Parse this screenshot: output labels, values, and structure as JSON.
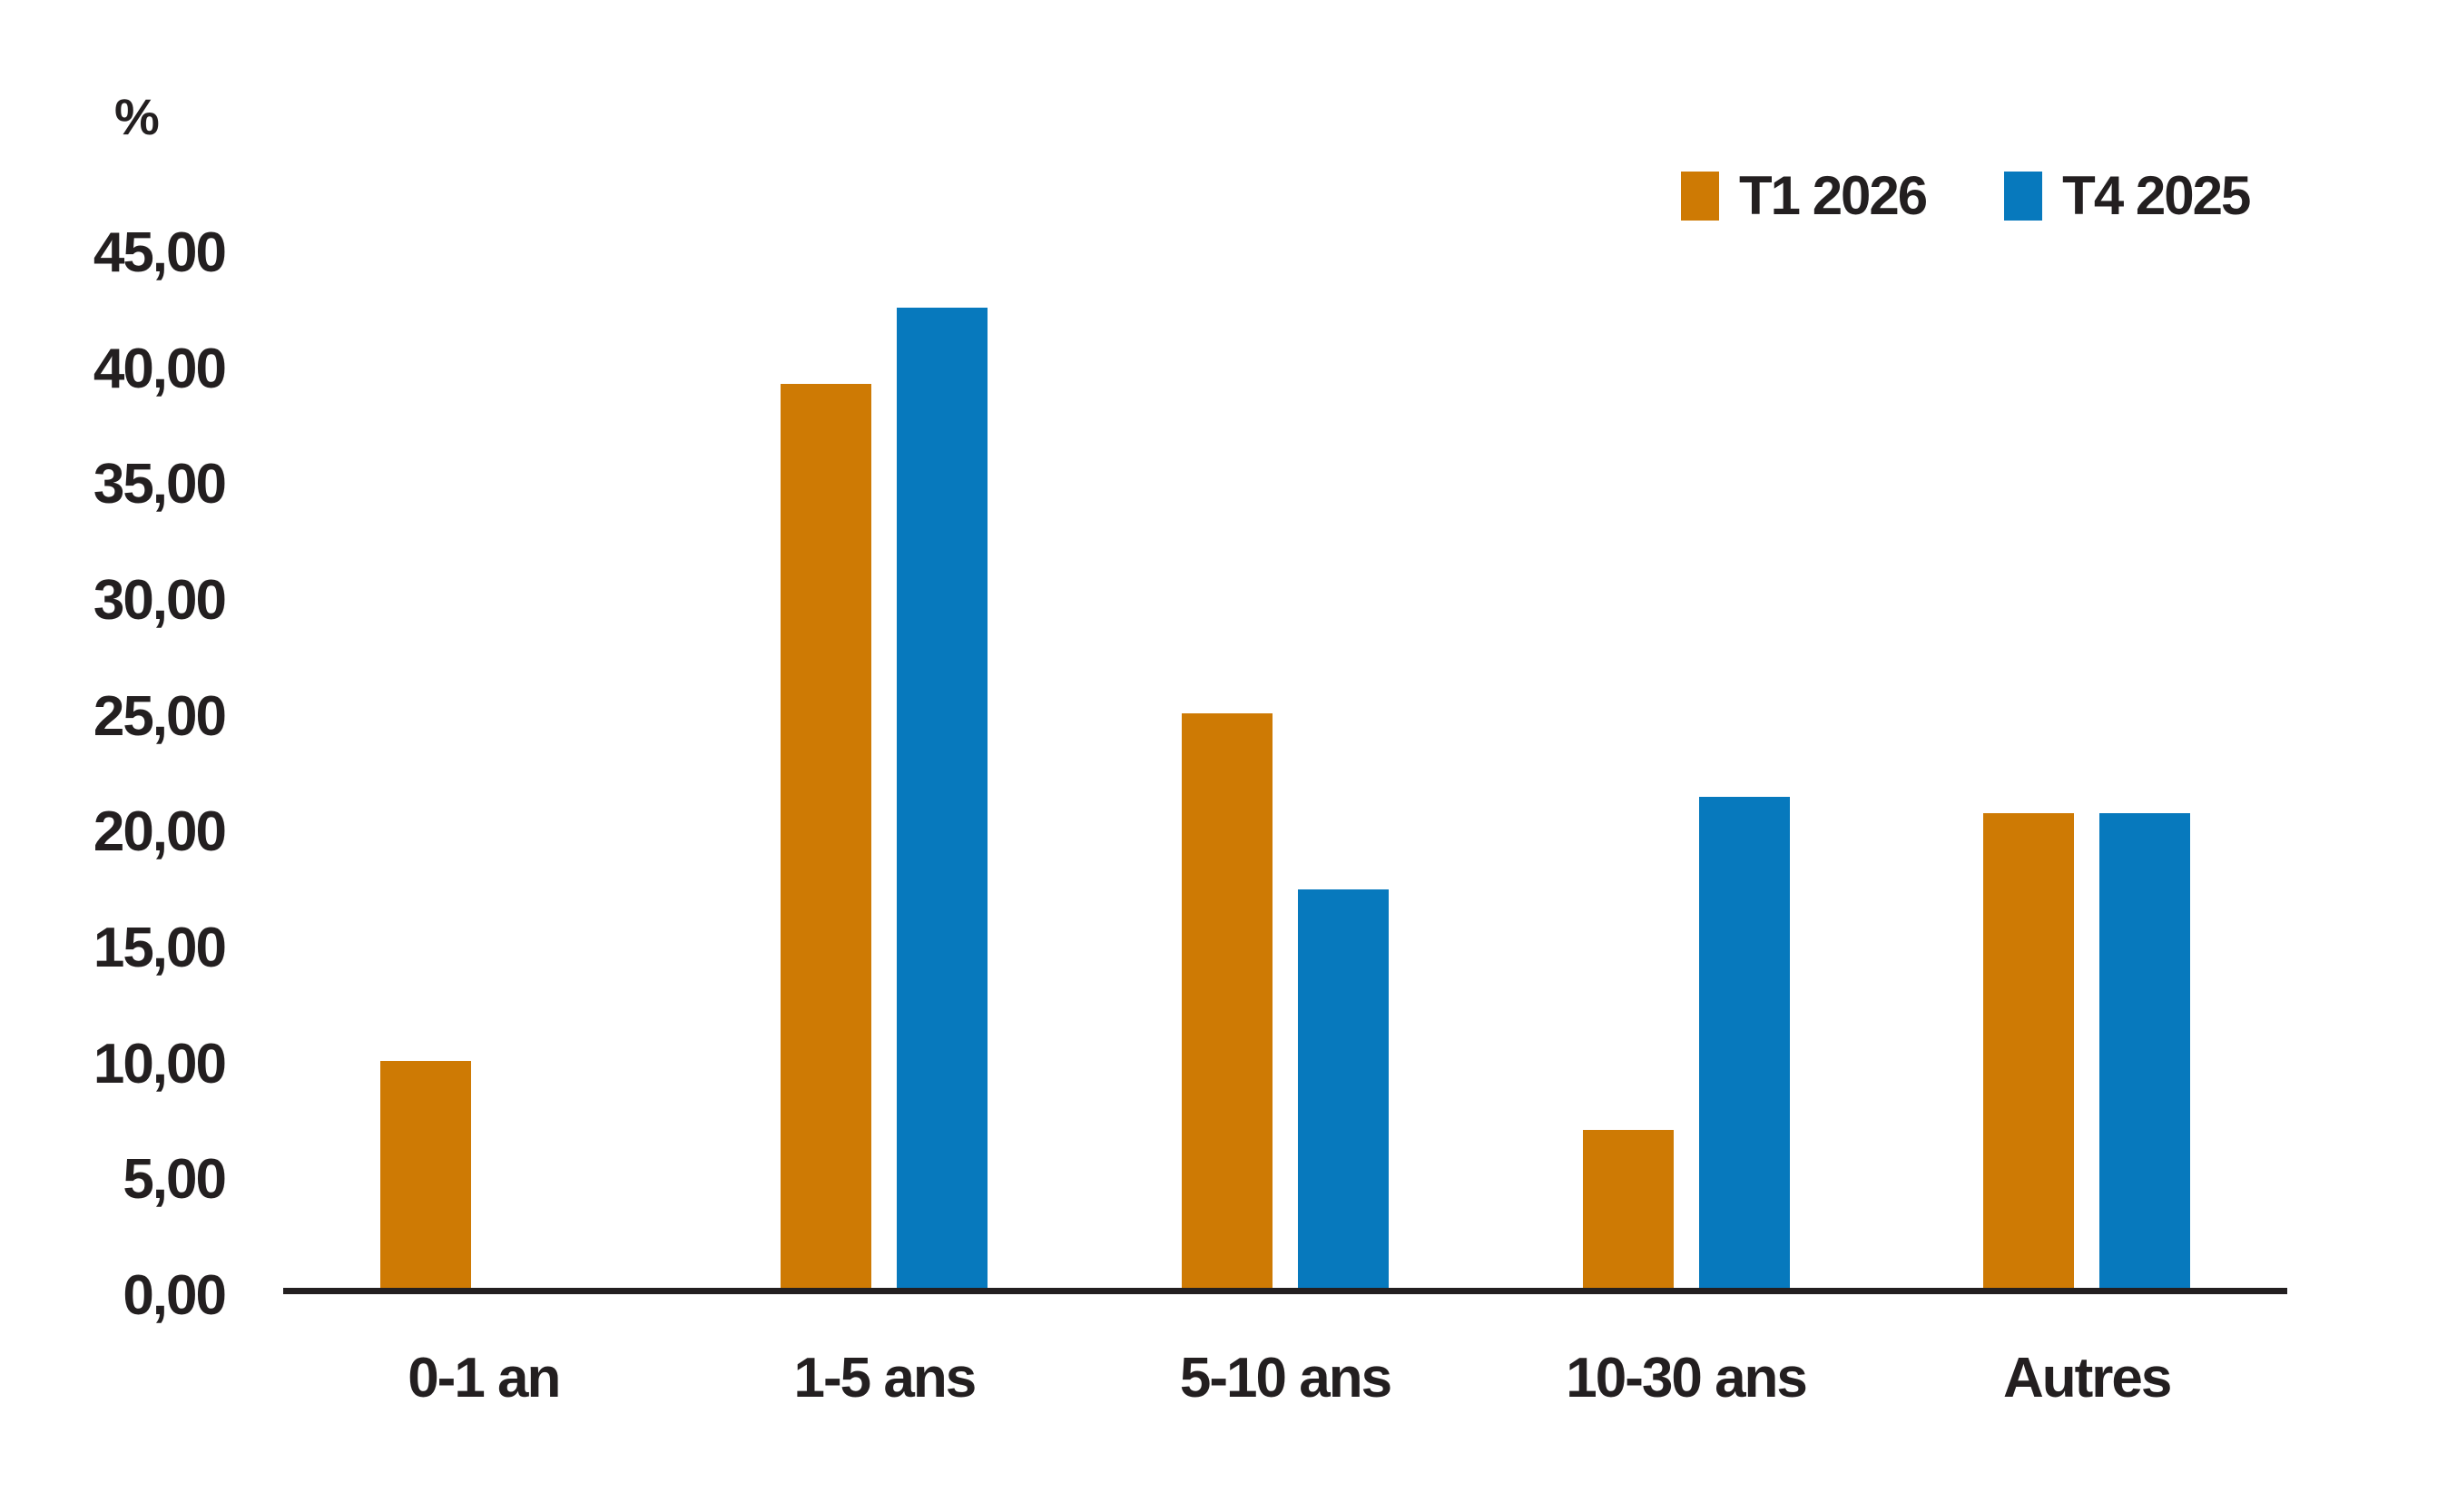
{
  "chart_data": {
    "type": "bar",
    "title": "",
    "ylabel": "%",
    "xlabel": "",
    "categories": [
      "0-1 an",
      "1-5 ans",
      "5-10 ans",
      "10-30 ans",
      "Autres"
    ],
    "series": [
      {
        "name": "T1 2026",
        "color": "#CE7A04",
        "values": [
          9.8,
          39.0,
          24.8,
          6.8,
          20.5
        ]
      },
      {
        "name": "T4 2025",
        "color": "#0779BD",
        "values": [
          0,
          42.3,
          17.2,
          21.2,
          20.5
        ]
      }
    ],
    "ylim": [
      0,
      45
    ],
    "y_tick_step": 5,
    "y_tick_labels": [
      "0,00",
      "5,00",
      "10,00",
      "15,00",
      "20,00",
      "25,00",
      "30,00",
      "35,00",
      "40,00",
      "45,00"
    ],
    "grid": false,
    "legend_position": "top-right",
    "axis_color": "#231F20",
    "text_color": "#231F20",
    "background_color": "#FFFFFF",
    "decimal_separator": ","
  }
}
